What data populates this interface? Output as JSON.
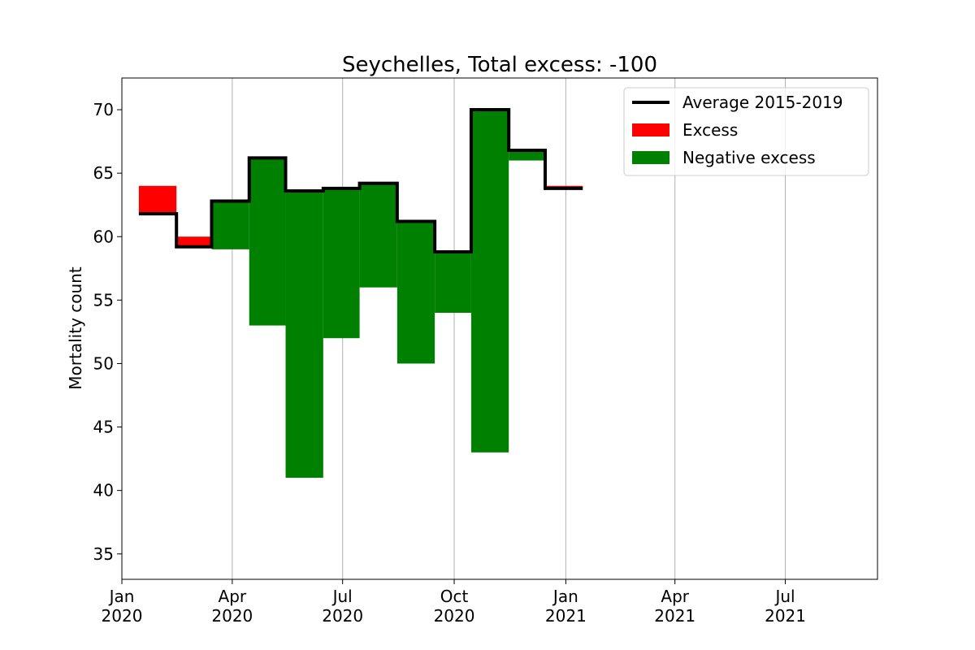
{
  "chart_data": {
    "type": "step",
    "title": "Seychelles, Total excess: -100",
    "xlabel": "",
    "ylabel": "Mortality count",
    "ylim": [
      33,
      72.5
    ],
    "xlim": [
      "2020-01-01",
      "2021-09-15"
    ],
    "yticks": [
      35,
      40,
      45,
      50,
      55,
      60,
      65,
      70
    ],
    "xticks": [
      {
        "date": "2020-01-01",
        "label_top": "Jan",
        "label_bottom": "2020"
      },
      {
        "date": "2020-04-01",
        "label_top": "Apr",
        "label_bottom": "2020"
      },
      {
        "date": "2020-07-01",
        "label_top": "Jul",
        "label_bottom": "2020"
      },
      {
        "date": "2020-10-01",
        "label_top": "Oct",
        "label_bottom": "2020"
      },
      {
        "date": "2021-01-01",
        "label_top": "Jan",
        "label_bottom": "2021"
      },
      {
        "date": "2021-04-01",
        "label_top": "Apr",
        "label_bottom": "2021"
      },
      {
        "date": "2021-07-01",
        "label_top": "Jul",
        "label_bottom": "2021"
      }
    ],
    "x_grid": true,
    "legend_position": "top-right",
    "months": [
      {
        "start": "2020-01-15",
        "end": "2020-02-15",
        "average": 61.8,
        "actual": 64
      },
      {
        "start": "2020-02-15",
        "end": "2020-03-15",
        "average": 59.2,
        "actual": 60
      },
      {
        "start": "2020-03-15",
        "end": "2020-04-15",
        "average": 62.8,
        "actual": 59
      },
      {
        "start": "2020-04-15",
        "end": "2020-05-15",
        "average": 66.2,
        "actual": 53
      },
      {
        "start": "2020-05-15",
        "end": "2020-06-15",
        "average": 63.6,
        "actual": 41
      },
      {
        "start": "2020-06-15",
        "end": "2020-07-15",
        "average": 63.8,
        "actual": 52
      },
      {
        "start": "2020-07-15",
        "end": "2020-08-15",
        "average": 64.2,
        "actual": 56
      },
      {
        "start": "2020-08-15",
        "end": "2020-09-15",
        "average": 61.2,
        "actual": 50
      },
      {
        "start": "2020-09-15",
        "end": "2020-10-15",
        "average": 58.8,
        "actual": 54
      },
      {
        "start": "2020-10-15",
        "end": "2020-11-15",
        "average": 70.0,
        "actual": 43
      },
      {
        "start": "2020-11-15",
        "end": "2020-12-15",
        "average": 66.8,
        "actual": 66
      },
      {
        "start": "2020-12-15",
        "end": "2021-01-15",
        "average": 63.8,
        "actual": 64
      }
    ],
    "series": [
      {
        "name": "Average 2015-2019",
        "color": "#000000",
        "kind": "line"
      },
      {
        "name": "Excess",
        "color": "#ff0000",
        "kind": "fill"
      },
      {
        "name": "Negative excess",
        "color": "#008000",
        "kind": "fill"
      }
    ]
  }
}
